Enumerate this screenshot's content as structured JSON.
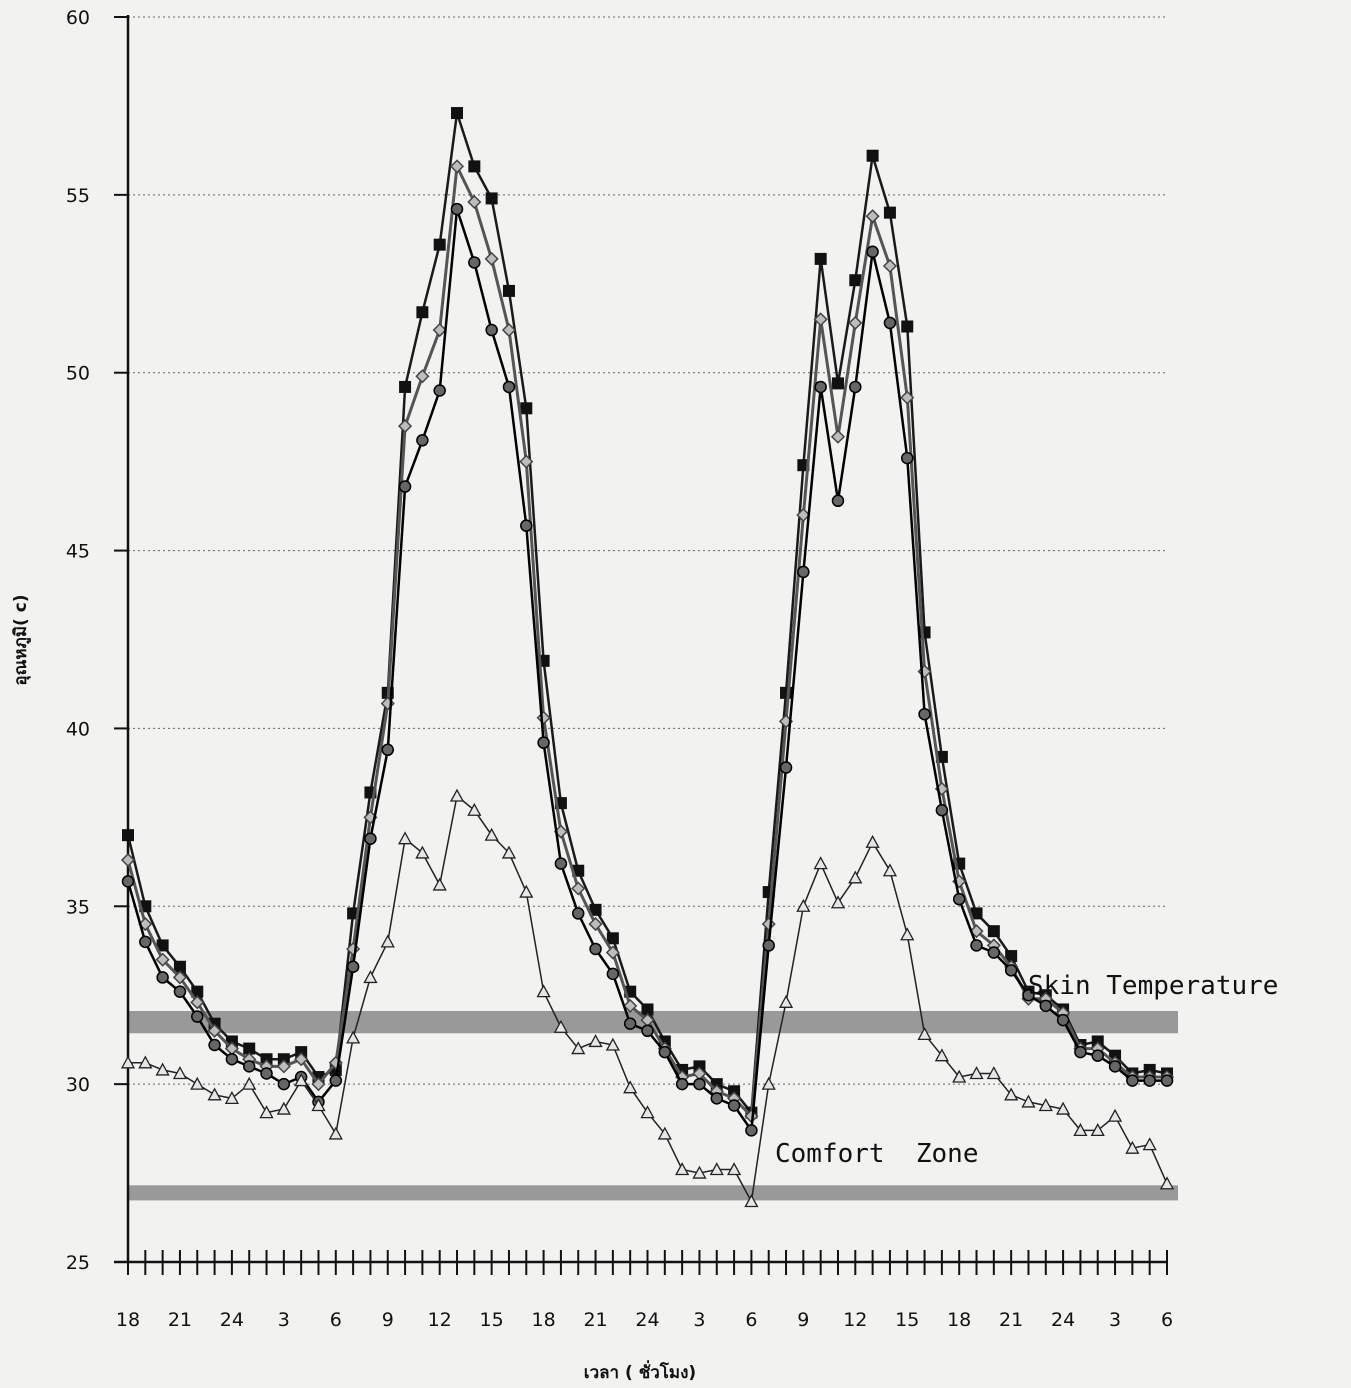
{
  "chart_data": {
    "type": "line",
    "title": "",
    "xlabel": "เวลา ( ชั่วโมง)",
    "ylabel": "อุณหภูมิ( c)",
    "ylim": [
      25,
      60
    ],
    "yticks": [
      "25",
      "30",
      "35",
      "40",
      "45",
      "50",
      "55",
      "60"
    ],
    "xtick_labels": [
      "18",
      "21",
      "24",
      "3",
      "6",
      "9",
      "12",
      "15",
      "18",
      "21",
      "24",
      "3",
      "6",
      "9",
      "12",
      "15",
      "18",
      "21",
      "24",
      "3",
      "6"
    ],
    "grid": "horizontal dotted",
    "x_hours": [
      18,
      19,
      20,
      21,
      22,
      23,
      24,
      25,
      26,
      27,
      28,
      29,
      30,
      31,
      32,
      33,
      34,
      35,
      36,
      37,
      38,
      39,
      40,
      41,
      42,
      43,
      44,
      45,
      46,
      47,
      48,
      49,
      50,
      51,
      52,
      53,
      54,
      55,
      56,
      57,
      58,
      59,
      60,
      61,
      62,
      63,
      64,
      65,
      66,
      67,
      68,
      69,
      70,
      71,
      72,
      73,
      74,
      75,
      76,
      77,
      78
    ],
    "series": [
      {
        "name": "",
        "marker": "square",
        "color": "#1a1a1a",
        "values": [
          37.0,
          35.0,
          33.9,
          33.3,
          32.6,
          31.7,
          31.2,
          31.0,
          30.7,
          30.7,
          30.9,
          30.2,
          30.4,
          34.8,
          38.2,
          41.0,
          49.6,
          51.7,
          53.6,
          57.3,
          55.8,
          54.9,
          52.3,
          49.0,
          41.9,
          37.9,
          36.0,
          34.9,
          34.1,
          32.6,
          32.1,
          31.2,
          30.4,
          30.5,
          30.0,
          29.8,
          29.2,
          35.4,
          41.0,
          47.4,
          53.2,
          49.7,
          52.6,
          56.1,
          54.5,
          51.3,
          42.7,
          39.2,
          36.2,
          34.8,
          34.3,
          33.6,
          32.6,
          32.5,
          32.1,
          31.1,
          31.2,
          30.8,
          30.3,
          30.4,
          30.3
        ]
      },
      {
        "name": "",
        "marker": "diamond",
        "color": "#555555",
        "values": [
          36.3,
          34.5,
          33.5,
          33.0,
          32.3,
          31.5,
          31.0,
          30.7,
          30.5,
          30.5,
          30.7,
          30.0,
          30.6,
          33.8,
          37.5,
          40.7,
          48.5,
          49.9,
          51.2,
          55.8,
          54.8,
          53.2,
          51.2,
          47.5,
          40.3,
          37.1,
          35.5,
          34.5,
          33.7,
          32.2,
          31.8,
          31.0,
          30.2,
          30.3,
          29.8,
          29.6,
          29.1,
          34.5,
          40.2,
          46.0,
          51.5,
          48.2,
          51.4,
          54.4,
          53.0,
          49.3,
          41.6,
          38.3,
          35.7,
          34.3,
          33.9,
          33.3,
          32.4,
          32.4,
          32.0,
          31.0,
          31.0,
          30.6,
          30.2,
          30.2,
          30.2
        ]
      },
      {
        "name": "",
        "marker": "circle",
        "color": "#000000",
        "values": [
          35.7,
          34.0,
          33.0,
          32.6,
          31.9,
          31.1,
          30.7,
          30.5,
          30.3,
          30.0,
          30.2,
          29.5,
          30.1,
          33.3,
          36.9,
          39.4,
          46.8,
          48.1,
          49.5,
          54.6,
          53.1,
          51.2,
          49.6,
          45.7,
          39.6,
          36.2,
          34.8,
          33.8,
          33.1,
          31.7,
          31.5,
          30.9,
          30.0,
          30.0,
          29.6,
          29.4,
          28.7,
          33.9,
          38.9,
          44.4,
          49.6,
          46.4,
          49.6,
          53.4,
          51.4,
          47.6,
          40.4,
          37.7,
          35.2,
          33.9,
          33.7,
          33.2,
          32.5,
          32.2,
          31.8,
          30.9,
          30.8,
          30.5,
          30.1,
          30.1,
          30.1
        ]
      },
      {
        "name": "",
        "marker": "triangle",
        "color": "#222222",
        "values": [
          30.6,
          30.6,
          30.4,
          30.3,
          30.0,
          29.7,
          29.6,
          30.0,
          29.2,
          29.3,
          30.1,
          29.4,
          28.6,
          31.3,
          33.0,
          34.0,
          36.9,
          36.5,
          35.6,
          38.1,
          37.7,
          37.0,
          36.5,
          35.4,
          32.6,
          31.6,
          31.0,
          31.2,
          31.1,
          29.9,
          29.2,
          28.6,
          27.6,
          27.5,
          27.6,
          27.6,
          26.7,
          30.0,
          32.3,
          35.0,
          36.2,
          35.1,
          35.8,
          36.8,
          36.0,
          34.2,
          31.4,
          30.8,
          30.2,
          30.3,
          30.3,
          29.7,
          29.5,
          29.4,
          29.3,
          28.7,
          28.7,
          29.1,
          28.2,
          28.3,
          27.2
        ]
      }
    ],
    "bands": [
      {
        "label": "Skin Temperature",
        "y": 32.0,
        "y2": 31.6
      },
      {
        "label": "Comfort  Zone",
        "y": 27.1,
        "y2": 26.9
      }
    ]
  }
}
